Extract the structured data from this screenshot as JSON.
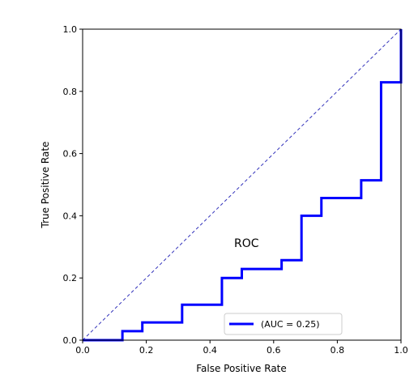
{
  "chart_data": {
    "type": "line",
    "title": "",
    "xlabel": "False Positive Rate",
    "ylabel": "True Positive Rate",
    "xlim": [
      0,
      1
    ],
    "ylim": [
      0,
      1
    ],
    "xticks": [
      "0.0",
      "0.2",
      "0.4",
      "0.6",
      "0.8",
      "1.0"
    ],
    "yticks": [
      "0.0",
      "0.2",
      "0.4",
      "0.6",
      "0.8",
      "1.0"
    ],
    "grid": false,
    "annotation": "ROC",
    "legend": {
      "position": "lower-right",
      "entries": [
        "(AUC = 0.25)"
      ]
    },
    "series": [
      {
        "name": "(AUC = 0.25)",
        "color": "#0000ff",
        "style": "solid",
        "x": [
          0,
          0.125,
          0.125,
          0.1875,
          0.1875,
          0.3125,
          0.3125,
          0.4375,
          0.4375,
          0.5,
          0.5,
          0.625,
          0.625,
          0.6875,
          0.6875,
          0.75,
          0.75,
          0.875,
          0.875,
          0.9375,
          0.9375,
          1.0,
          1.0
        ],
        "y": [
          0,
          0,
          0.029,
          0.029,
          0.057,
          0.057,
          0.114,
          0.114,
          0.2,
          0.2,
          0.229,
          0.229,
          0.257,
          0.257,
          0.4,
          0.4,
          0.457,
          0.457,
          0.514,
          0.514,
          0.829,
          0.829,
          1.0
        ]
      },
      {
        "name": "",
        "color": "#3333bb",
        "style": "dashed",
        "x": [
          0,
          1
        ],
        "y": [
          0,
          1
        ]
      }
    ]
  }
}
